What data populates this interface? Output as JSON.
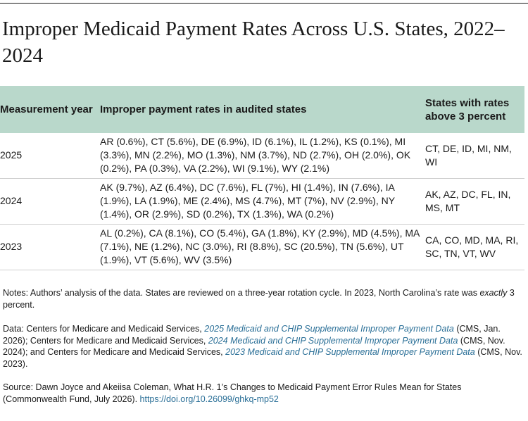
{
  "title": "Improper Medicaid Payment Rates Across U.S. States, 2022–2024",
  "table": {
    "headers": {
      "year": "Measurement year",
      "rates": "Improper payment rates in audited states",
      "above": "States with rates above 3 percent"
    },
    "rows": [
      {
        "year": "2025",
        "rates": "AR (0.6%), CT (5.6%), DE (6.9%), ID (6.1%), IL (1.2%), KS (0.1%), MI (3.3%), MN (2.2%), MO (1.3%), NM (3.7%), ND (2.7%), OH (2.0%), OK (0.2%), PA (0.3%), VA (2.2%), WI (9.1%), WY (2.1%)",
        "above": "CT, DE, ID, MI, NM, WI"
      },
      {
        "year": "2024",
        "rates": "AK (9.7%), AZ (6.4%), DC (7.6%), FL (7%), HI (1.4%), IN (7.6%), IA (1.9%), LA (1.9%), ME (2.4%), MS (4.7%), MT (7%), NV (2.9%), NY (1.4%), OR (2.9%), SD (0.2%), TX (1.3%), WA (0.2%)",
        "above": "AK, AZ, DC, FL, IN, MS, MT"
      },
      {
        "year": "2023",
        "rates": "AL (0.2%), CA (8.1%), CO (5.4%), GA (1.8%), KY (2.9%), MD (4.5%), MA (7.1%), NE (1.2%), NC (3.0%), RI (8.8%), SC (20.5%), TN (5.6%), UT (1.9%), VT (5.6%), WV (3.5%)",
        "above": "CA, CO, MD, MA, RI, SC, TN, VT, WV"
      }
    ]
  },
  "notes": {
    "before": "Notes: Authors’ analysis of the data. States are reviewed on a three-year rotation cycle. In 2023, North Carolina’s rate was ",
    "em": "exactly",
    "after": " 3 percent."
  },
  "data_sources": {
    "prefix1": "Data: Centers for Medicare and Medicaid Services, ",
    "link1": "2025 Medicaid and CHIP Supplemental Improper Payment Data",
    "suffix1": " (CMS, Jan. 2026); Centers for Medicare and Medicaid Services, ",
    "link2": "2024 Medicaid and CHIP Supplemental Improper Payment Data",
    "suffix2": " (CMS, Nov. 2024); and Centers for Medicare and Medicaid Services, ",
    "link3": "2023 Medicaid and CHIP Supplemental Improper Payment Data",
    "suffix3": " (CMS, Nov. 2023)."
  },
  "source": {
    "text": "Source: Dawn Joyce and Akeiisa Coleman, What H.R. 1’s Changes to Medicaid Payment Error Rules Mean for States (Commonwealth Fund, July 2026). ",
    "doi": "https://doi.org/10.26099/ghkq-mp52"
  }
}
